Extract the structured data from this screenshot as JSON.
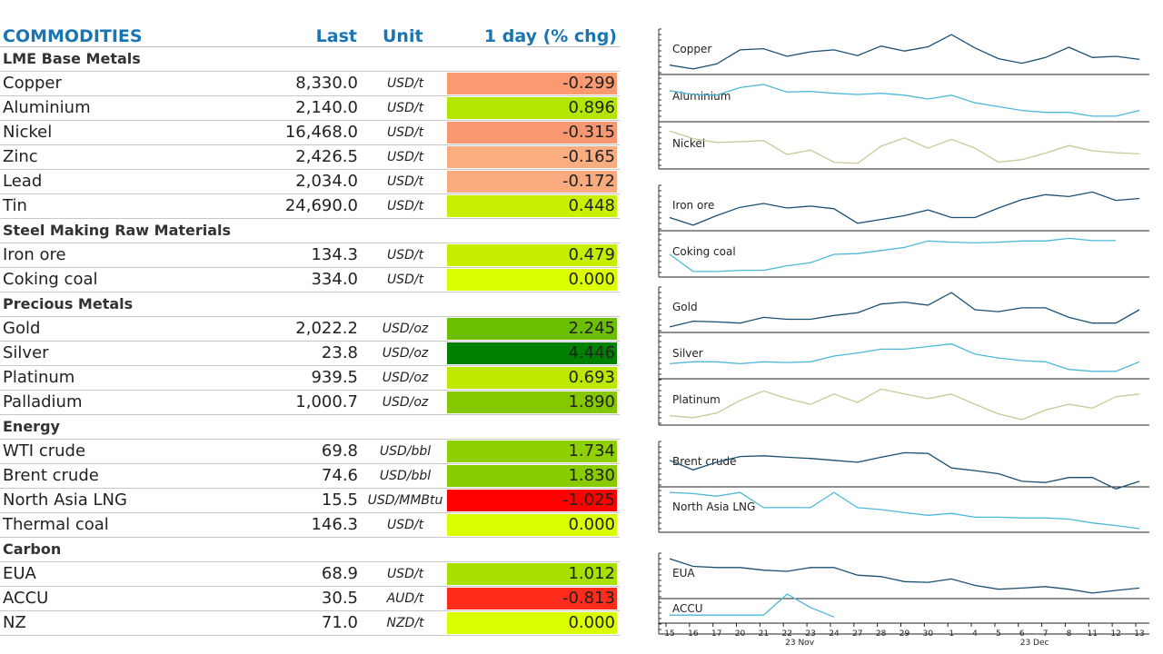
{
  "table": {
    "headers": {
      "name": "COMMODITIES",
      "last": "Last",
      "unit": "Unit",
      "chg": "1 day (% chg)"
    },
    "sections": [
      {
        "title": "LME Base Metals",
        "rows": [
          {
            "name": "Copper",
            "last": "8,330.0",
            "unit": "USD/t",
            "chg": "-0.299",
            "color": "#f99a70"
          },
          {
            "name": "Aluminium",
            "last": "2,140.0",
            "unit": "USD/t",
            "chg": "0.896",
            "color": "#b3e600"
          },
          {
            "name": "Nickel",
            "last": "16,468.0",
            "unit": "USD/t",
            "chg": "-0.315",
            "color": "#f89872"
          },
          {
            "name": "Zinc",
            "last": "2,426.5",
            "unit": "USD/t",
            "chg": "-0.165",
            "color": "#f9ad80"
          },
          {
            "name": "Lead",
            "last": "2,034.0",
            "unit": "USD/t",
            "chg": "-0.172",
            "color": "#f9ab7f"
          },
          {
            "name": "Tin",
            "last": "24,690.0",
            "unit": "USD/t",
            "chg": "0.448",
            "color": "#c9f000"
          }
        ]
      },
      {
        "title": "Steel Making Raw Materials",
        "rows": [
          {
            "name": "Iron ore",
            "last": "134.3",
            "unit": "USD/t",
            "chg": "0.479",
            "color": "#c6ef00"
          },
          {
            "name": "Coking coal",
            "last": "334.0",
            "unit": "USD/t",
            "chg": "0.000",
            "color": "#dcff00"
          }
        ]
      },
      {
        "title": "Precious Metals",
        "rows": [
          {
            "name": "Gold",
            "last": "2,022.2",
            "unit": "USD/oz",
            "chg": "2.245",
            "color": "#6cbe00"
          },
          {
            "name": "Silver",
            "last": "23.8",
            "unit": "USD/oz",
            "chg": "4.446",
            "color": "#008000"
          },
          {
            "name": "Platinum",
            "last": "939.5",
            "unit": "USD/oz",
            "chg": "0.693",
            "color": "#bde800"
          },
          {
            "name": "Palladium",
            "last": "1,000.7",
            "unit": "USD/oz",
            "chg": "1.890",
            "color": "#85c800"
          }
        ]
      },
      {
        "title": "Energy",
        "rows": [
          {
            "name": "WTI crude",
            "last": "69.8",
            "unit": "USD/bbl",
            "chg": "1.734",
            "color": "#8ed000"
          },
          {
            "name": "Brent crude",
            "last": "74.6",
            "unit": "USD/bbl",
            "chg": "1.830",
            "color": "#88cc00"
          },
          {
            "name": "North Asia LNG",
            "last": "15.5",
            "unit": "USD/MMBtu",
            "chg": "-1.025",
            "color": "#ff0000"
          },
          {
            "name": "Thermal coal",
            "last": "146.3",
            "unit": "USD/t",
            "chg": "0.000",
            "color": "#dcff00"
          }
        ]
      },
      {
        "title": "Carbon",
        "rows": [
          {
            "name": "EUA",
            "last": "68.9",
            "unit": "USD/t",
            "chg": "1.012",
            "color": "#a8e000"
          },
          {
            "name": "ACCU",
            "last": "30.5",
            "unit": "AUD/t",
            "chg": "-0.813",
            "color": "#ff2b1b"
          },
          {
            "name": "NZ",
            "last": "71.0",
            "unit": "NZD/t",
            "chg": "0.000",
            "color": "#dcff00"
          }
        ]
      }
    ]
  },
  "chart_data": {
    "type": "line",
    "x_tick_labels": [
      "15",
      "16",
      "17",
      "20",
      "21",
      "22",
      "23",
      "24",
      "27",
      "28",
      "29",
      "30",
      "1",
      "4",
      "5",
      "6",
      "7",
      "8",
      "11",
      "12",
      "13"
    ],
    "x_month_labels": [
      {
        "label": "23 Nov",
        "at": 6
      },
      {
        "label": "23 Dec",
        "at": 16
      }
    ],
    "colors": {
      "dark": "#1b4f72",
      "light": "#4cb8d8",
      "olive": "#c8c89a"
    },
    "panels": [
      {
        "name": "Copper",
        "color": "dark",
        "values": [
          0.15,
          0.05,
          0.18,
          0.55,
          0.58,
          0.38,
          0.5,
          0.55,
          0.4,
          0.65,
          0.52,
          0.63,
          0.95,
          0.6,
          0.32,
          0.2,
          0.35,
          0.62,
          0.35,
          0.38,
          0.3
        ]
      },
      {
        "name": "Aluminium",
        "color": "light",
        "values": [
          0.72,
          0.62,
          0.6,
          0.8,
          0.88,
          0.68,
          0.7,
          0.65,
          0.62,
          0.65,
          0.6,
          0.5,
          0.6,
          0.4,
          0.3,
          0.2,
          0.15,
          0.15,
          0.05,
          0.05,
          0.2
        ]
      },
      {
        "name": "Nickel",
        "color": "olive",
        "values": [
          0.9,
          0.7,
          0.6,
          0.62,
          0.65,
          0.28,
          0.4,
          0.08,
          0.05,
          0.5,
          0.72,
          0.45,
          0.68,
          0.45,
          0.08,
          0.15,
          0.32,
          0.52,
          0.38,
          0.33,
          0.3
        ]
      },
      {
        "name": "Iron ore",
        "color": "dark",
        "values": [
          0.25,
          0.05,
          0.3,
          0.52,
          0.62,
          0.5,
          0.55,
          0.48,
          0.1,
          0.2,
          0.3,
          0.45,
          0.25,
          0.25,
          0.5,
          0.72,
          0.85,
          0.8,
          0.92,
          0.7,
          0.75
        ]
      },
      {
        "name": "Coking coal",
        "color": "light",
        "values": [
          0.5,
          0.05,
          0.05,
          0.08,
          0.08,
          0.2,
          0.28,
          0.5,
          0.52,
          0.6,
          0.68,
          0.85,
          0.82,
          0.8,
          0.82,
          0.85,
          0.85,
          0.92,
          0.86,
          0.86,
          null
        ]
      },
      {
        "name": "Gold",
        "color": "dark",
        "values": [
          0.05,
          0.2,
          0.18,
          0.15,
          0.3,
          0.25,
          0.25,
          0.35,
          0.42,
          0.65,
          0.7,
          0.62,
          0.95,
          0.5,
          0.45,
          0.55,
          0.55,
          0.3,
          0.15,
          0.15,
          0.5
        ]
      },
      {
        "name": "Silver",
        "color": "light",
        "values": [
          0.3,
          0.35,
          0.35,
          0.3,
          0.35,
          0.33,
          0.35,
          0.5,
          0.58,
          0.68,
          0.68,
          0.75,
          0.82,
          0.55,
          0.45,
          0.38,
          0.35,
          0.15,
          0.1,
          0.1,
          0.35
        ]
      },
      {
        "name": "Platinum",
        "color": "olive",
        "values": [
          0.15,
          0.1,
          0.22,
          0.55,
          0.8,
          0.6,
          0.45,
          0.72,
          0.5,
          0.85,
          0.72,
          0.6,
          0.72,
          0.45,
          0.2,
          0.05,
          0.3,
          0.45,
          0.35,
          0.65,
          0.72
        ]
      },
      {
        "name": "Brent crude",
        "color": "dark",
        "values": [
          0.6,
          0.35,
          0.55,
          0.7,
          0.72,
          0.68,
          0.65,
          0.6,
          0.55,
          0.68,
          0.8,
          0.78,
          0.4,
          0.33,
          0.25,
          0.05,
          0.02,
          0.15,
          0.15,
          -0.15,
          0.05
        ]
      },
      {
        "name": "North Asia LNG",
        "color": "light",
        "values": [
          0.95,
          0.92,
          0.85,
          0.95,
          0.55,
          0.55,
          0.55,
          0.95,
          0.55,
          0.5,
          0.42,
          0.35,
          0.4,
          0.3,
          0.3,
          0.28,
          0.28,
          0.25,
          0.15,
          0.08,
          0.0
        ]
      },
      {
        "name": "EUA",
        "color": "dark",
        "values": [
          0.95,
          0.75,
          0.72,
          0.72,
          0.65,
          0.62,
          0.72,
          0.72,
          0.52,
          0.48,
          0.35,
          0.33,
          0.42,
          0.25,
          0.15,
          0.18,
          0.22,
          0.15,
          0.05,
          0.12,
          0.18
        ]
      },
      {
        "name": "ACCU",
        "color": "light",
        "values": [
          0.4,
          0.4,
          0.4,
          0.4,
          0.4,
          0.95,
          0.6,
          0.35,
          null,
          null,
          null,
          null,
          null,
          null,
          null,
          null,
          null,
          null,
          null,
          null,
          null
        ]
      }
    ]
  }
}
